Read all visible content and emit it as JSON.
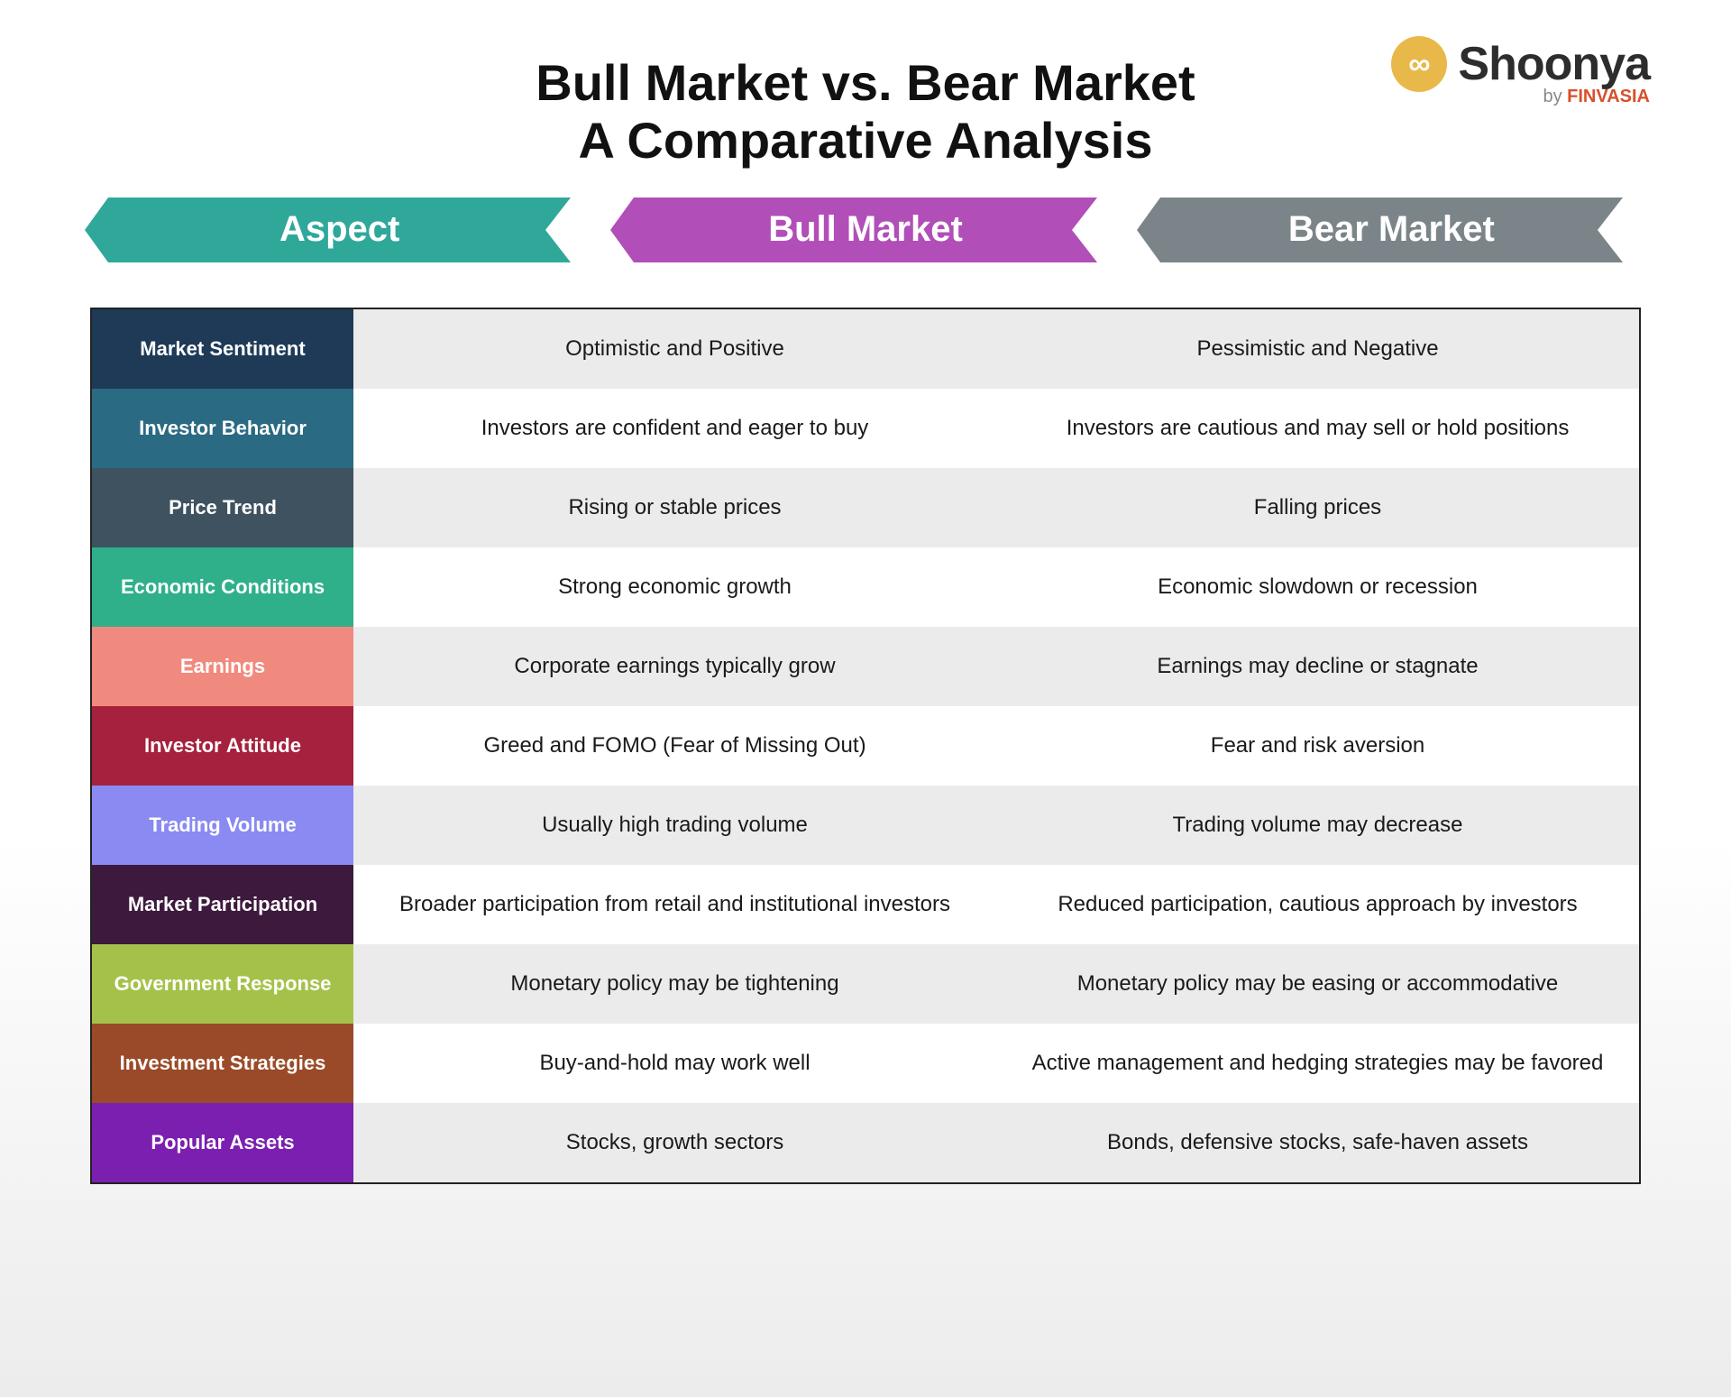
{
  "logo": {
    "brand_main": "Shoonya",
    "brand_sub_prefix": "by ",
    "brand_sub_accent": "FINVASIA"
  },
  "title_line1": "Bull Market vs. Bear Market",
  "title_line2": "A Comparative Analysis",
  "headers": {
    "aspect": {
      "label": "Aspect",
      "color": "#2fa89a"
    },
    "bull": {
      "label": "Bull Market",
      "color": "#b14eb8"
    },
    "bear": {
      "label": "Bear Market",
      "color": "#7b8589"
    }
  },
  "table": {
    "row_bg_odd": "#ebebeb",
    "row_bg_even": "#ffffff",
    "rows": [
      {
        "aspect": "Market Sentiment",
        "aspect_color": "#1e3a57",
        "bull": "Optimistic and Positive",
        "bear": "Pessimistic and Negative"
      },
      {
        "aspect": "Investor Behavior",
        "aspect_color": "#2a6a82",
        "bull": "Investors are confident and eager to buy",
        "bear": "Investors are cautious and may sell or hold positions"
      },
      {
        "aspect": "Price Trend",
        "aspect_color": "#3e5260",
        "bull": "Rising or stable prices",
        "bear": "Falling prices"
      },
      {
        "aspect": "Economic Conditions",
        "aspect_color": "#2fb08a",
        "bull": "Strong economic growth",
        "bear": "Economic slowdown or recession"
      },
      {
        "aspect": "Earnings",
        "aspect_color": "#f18a7e",
        "bull": "Corporate earnings typically grow",
        "bear": "Earnings may decline or stagnate"
      },
      {
        "aspect": "Investor Attitude",
        "aspect_color": "#a5213d",
        "bull": "Greed and FOMO (Fear of Missing Out)",
        "bear": "Fear and risk aversion"
      },
      {
        "aspect": "Trading Volume",
        "aspect_color": "#8a8af2",
        "bull": "Usually high trading volume",
        "bear": "Trading volume may decrease"
      },
      {
        "aspect": "Market Participation",
        "aspect_color": "#3d1a3d",
        "bull": "Broader participation from retail and institutional investors",
        "bear": "Reduced participation, cautious approach by investors"
      },
      {
        "aspect": "Government Response",
        "aspect_color": "#a4c24a",
        "bull": "Monetary policy may be tightening",
        "bear": "Monetary policy may be easing or accommodative"
      },
      {
        "aspect": "Investment Strategies",
        "aspect_color": "#9a4a28",
        "bull": "Buy-and-hold may work well",
        "bear": "Active management and hedging strategies may be favored"
      },
      {
        "aspect": "Popular Assets",
        "aspect_color": "#7a1fb0",
        "bull": "Stocks, growth sectors",
        "bear": "Bonds, defensive stocks, safe-haven assets"
      }
    ]
  }
}
